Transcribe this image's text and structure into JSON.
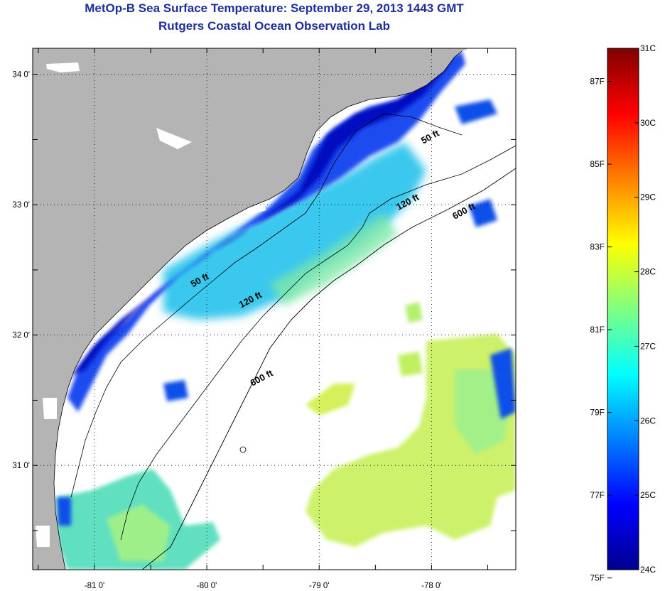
{
  "title": "MetOp-B Sea Surface Temperature:  September 29, 2013 1443 GMT",
  "subtitle": "Rutgers Coastal Ocean Observation Lab",
  "map": {
    "lon_range": [
      -81.55,
      -77.25
    ],
    "lat_range": [
      30.2,
      34.2
    ],
    "lon_ticks": [
      {
        "value": -81,
        "label": "-81 0'"
      },
      {
        "value": -80,
        "label": "-80 0'"
      },
      {
        "value": -79,
        "label": "-79 0'"
      },
      {
        "value": -78,
        "label": "-78 0'"
      }
    ],
    "lat_ticks": [
      {
        "value": 34,
        "label": "34 0'"
      },
      {
        "value": 33,
        "label": "33 0'"
      },
      {
        "value": 32,
        "label": "32 0'"
      },
      {
        "value": 31,
        "label": "31 0'"
      }
    ],
    "contour_labels": [
      {
        "text": "50 ft",
        "lon": -78.0,
        "lat": 33.5
      },
      {
        "text": "120 ft",
        "lon": -78.2,
        "lat": 33.0
      },
      {
        "text": "600 ft",
        "lon": -77.7,
        "lat": 32.93
      },
      {
        "text": "50 ft",
        "lon": -80.05,
        "lat": 32.4
      },
      {
        "text": "120 ft",
        "lon": -79.6,
        "lat": 32.25
      },
      {
        "text": "600 ft",
        "lon": -79.5,
        "lat": 31.65
      }
    ],
    "colors": {
      "land": "#b4b4b4",
      "ocean_no_data": "#ffffff"
    }
  },
  "colorbar": {
    "fahrenheit": [
      {
        "value": 87,
        "label": "87F"
      },
      {
        "value": 85,
        "label": "85F"
      },
      {
        "value": 83,
        "label": "83F"
      },
      {
        "value": 81,
        "label": "81F"
      },
      {
        "value": 79,
        "label": "79F"
      },
      {
        "value": 77,
        "label": "77F"
      },
      {
        "value": 75,
        "label": "75F"
      }
    ],
    "celsius": [
      {
        "value": 31,
        "label": "31C"
      },
      {
        "value": 30,
        "label": "30C"
      },
      {
        "value": 29,
        "label": "29C"
      },
      {
        "value": 28,
        "label": "28C"
      },
      {
        "value": 27,
        "label": "27C"
      },
      {
        "value": 26,
        "label": "26C"
      },
      {
        "value": 25,
        "label": "25C"
      },
      {
        "value": 24,
        "label": "24C"
      }
    ],
    "range_c": [
      24,
      31
    ],
    "colormap": [
      "#00008f",
      "#0000ff",
      "#0080ff",
      "#00ffff",
      "#80ff80",
      "#ffff00",
      "#ff8000",
      "#ff0000",
      "#800000"
    ]
  }
}
